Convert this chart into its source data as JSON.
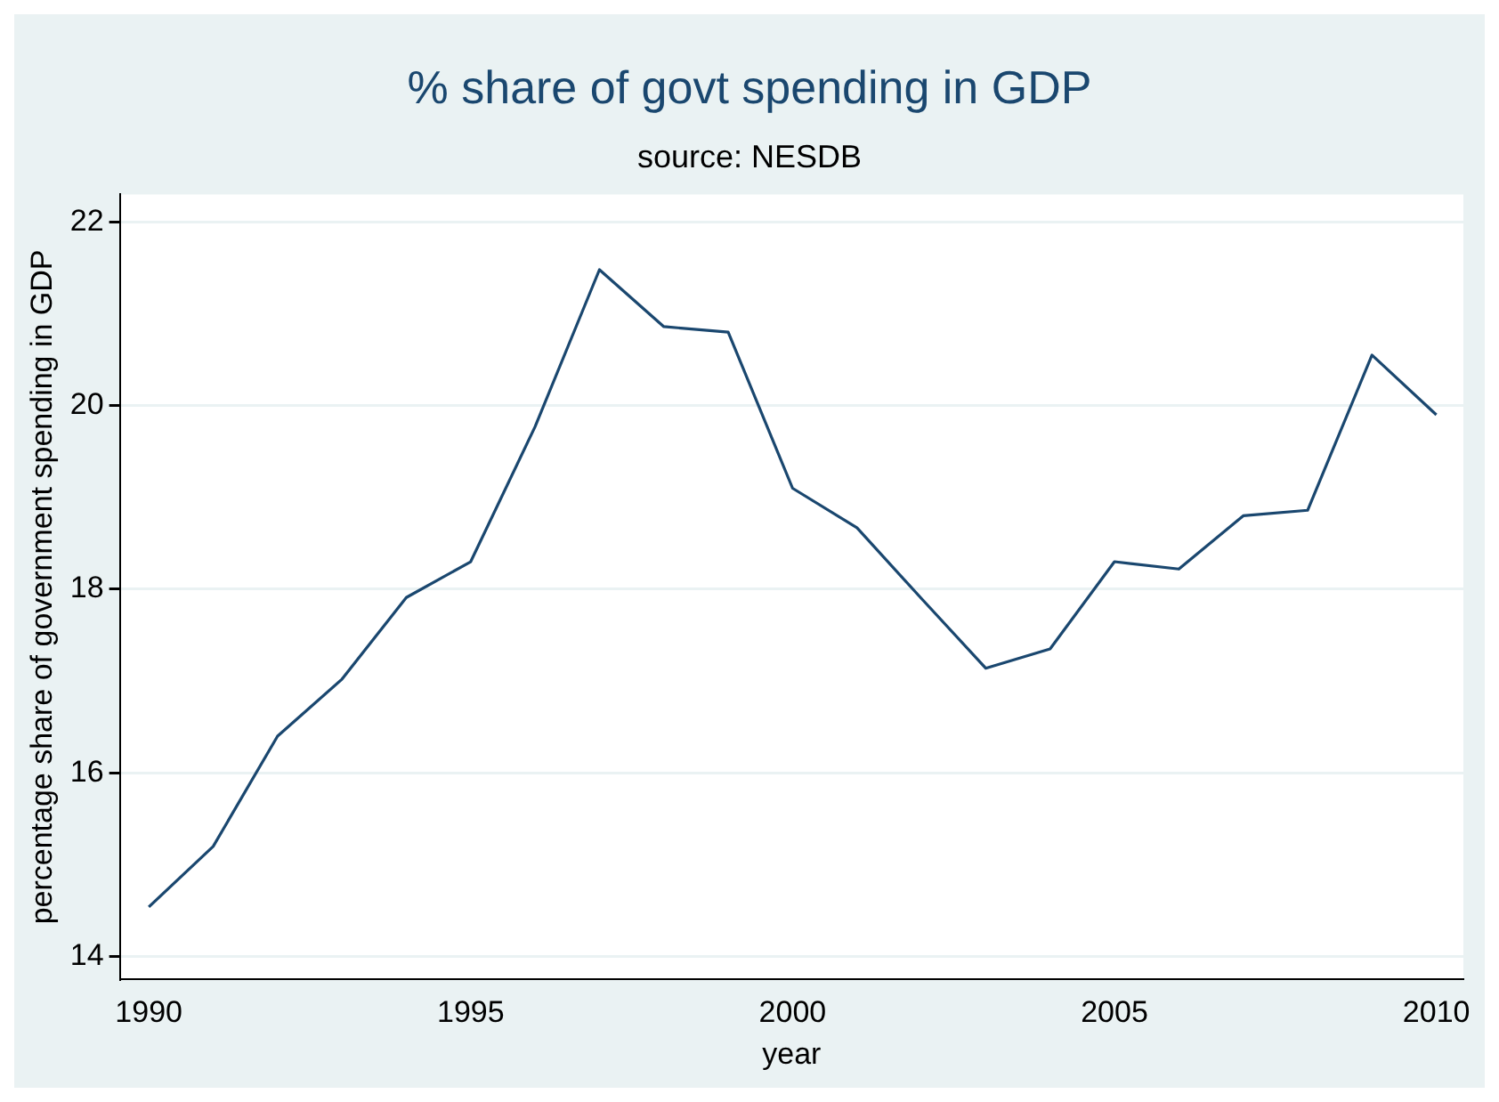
{
  "chart_data": {
    "type": "line",
    "title": "% share of govt spending in GDP",
    "subtitle": "source: NESDB",
    "xlabel": "year",
    "ylabel": "percentage share of government spending in GDP",
    "x": [
      1990,
      1991,
      1992,
      1993,
      1994,
      1995,
      1996,
      1997,
      1998,
      1999,
      2000,
      2001,
      2002,
      2003,
      2004,
      2005,
      2006,
      2007,
      2008,
      2009,
      2010
    ],
    "series": [
      {
        "color": "#1a476f",
        "values": [
          14.54,
          15.2,
          16.4,
          17.02,
          17.91,
          18.3,
          19.77,
          21.48,
          20.86,
          20.8,
          19.1,
          18.67,
          17.9,
          17.14,
          17.35,
          18.3,
          18.22,
          18.8,
          18.86,
          20.55,
          19.9
        ]
      }
    ],
    "xlim": [
      1989.55,
      2010.42
    ],
    "xticks": [
      1990,
      1995,
      2000,
      2005,
      2010
    ],
    "ylim": [
      13.75,
      22.3
    ],
    "yticks": [
      14,
      16,
      18,
      20,
      22
    ],
    "grid": "y",
    "legend": false,
    "marker": "none",
    "line_style": "solid"
  }
}
